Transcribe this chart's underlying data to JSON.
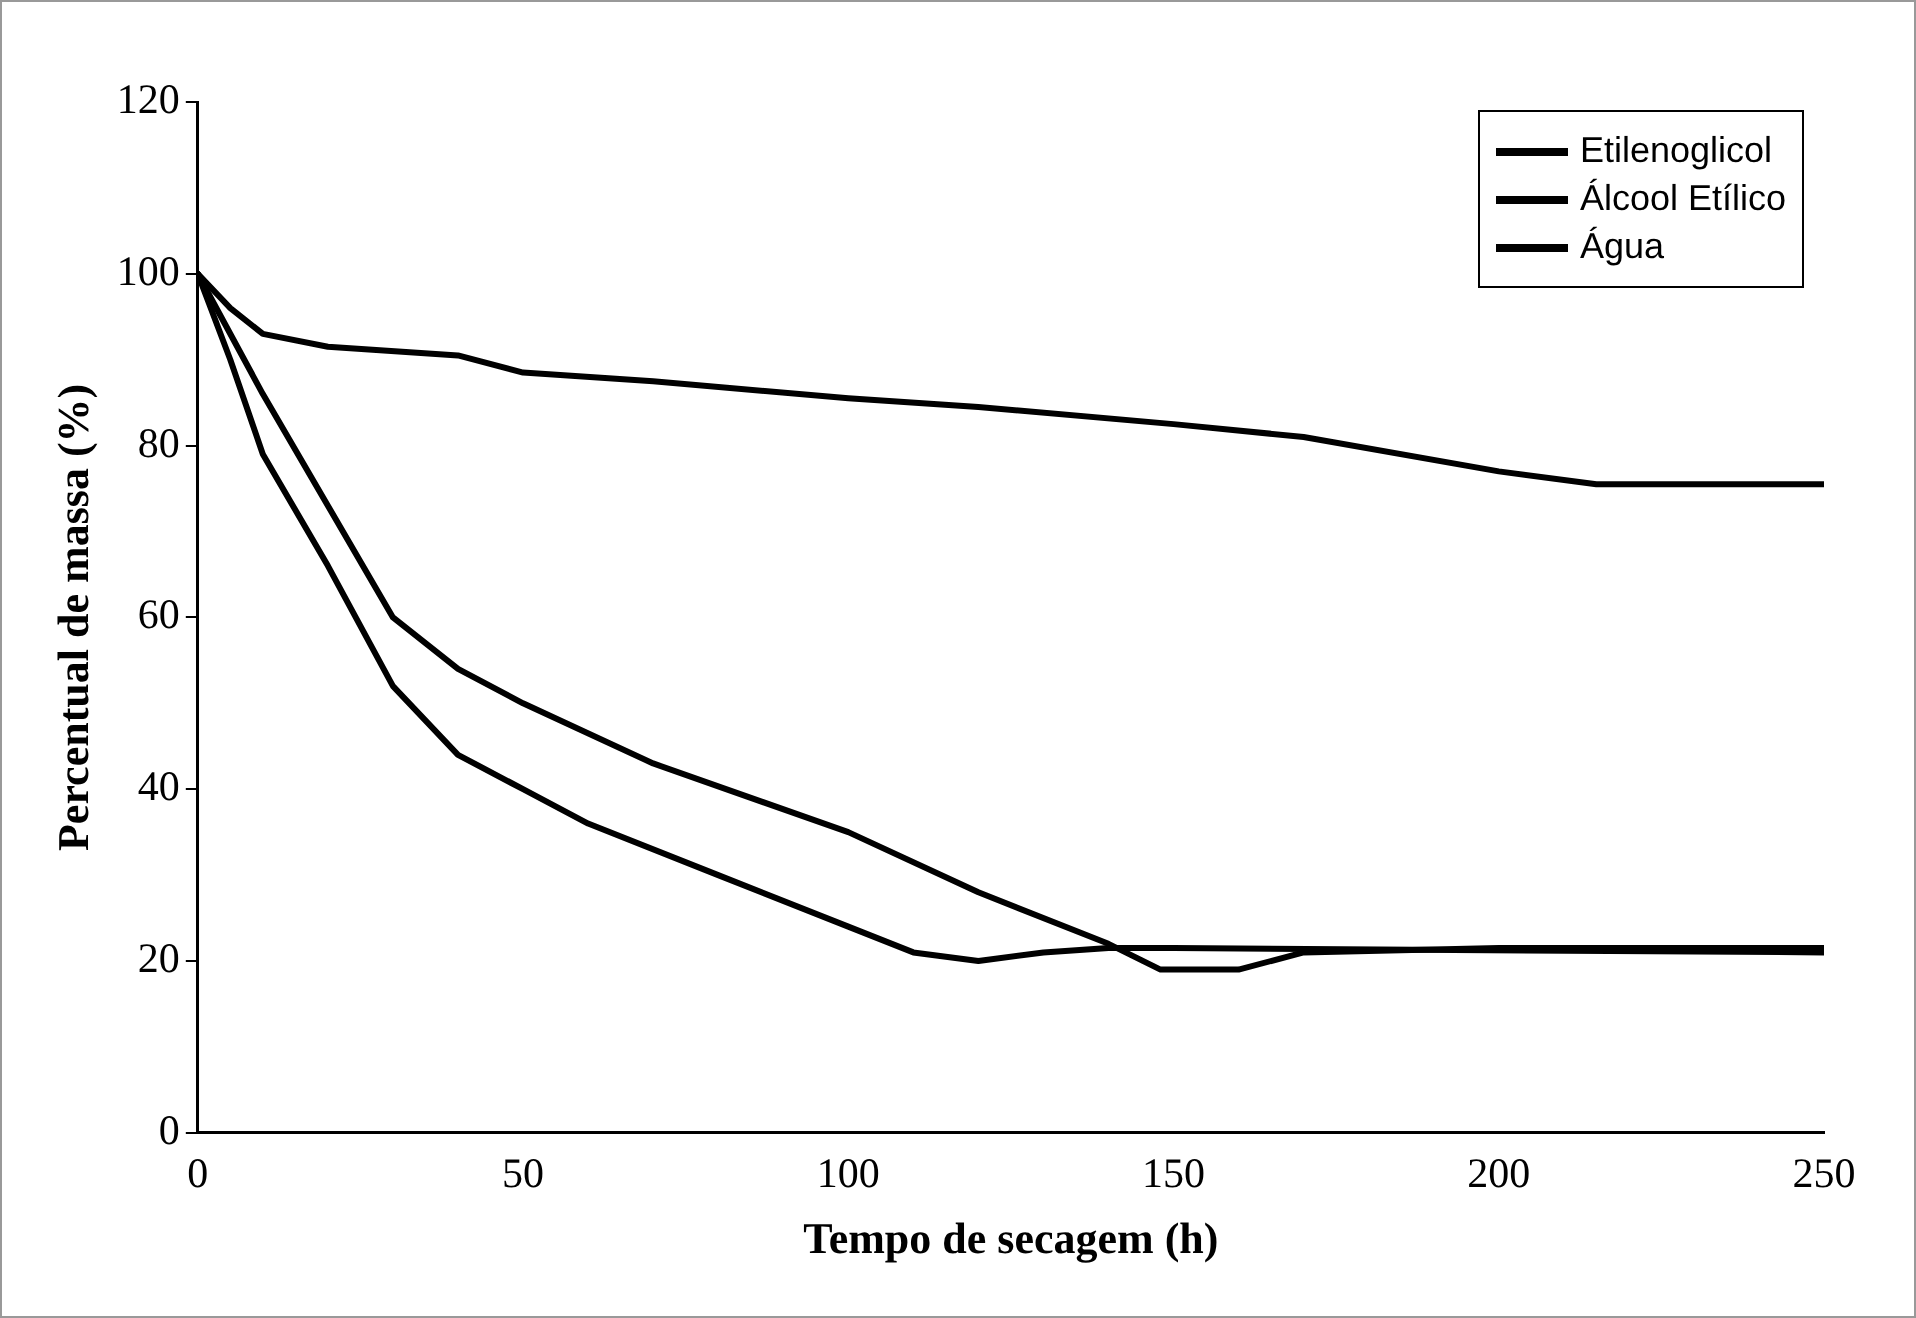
{
  "chart_data": {
    "type": "line",
    "xlabel": "Tempo de secagem (h)",
    "ylabel": "Percentual de massa (%)",
    "xlim": [
      0,
      250
    ],
    "xticks": [
      0,
      50,
      100,
      150,
      200,
      250
    ],
    "ylim": [
      0,
      120
    ],
    "yticks": [
      0,
      20,
      40,
      60,
      80,
      100,
      120
    ],
    "grid": false,
    "legend": "top right",
    "marker": "none",
    "line_style": "solid",
    "series": [
      {
        "name": "Etilenoglicol",
        "color": "#000000",
        "x": [
          0,
          5,
          10,
          20,
          40,
          50,
          70,
          100,
          120,
          150,
          170,
          200,
          215,
          250
        ],
        "values": [
          100,
          96,
          93,
          91.5,
          90.5,
          88.5,
          87.5,
          85.5,
          84.5,
          82.5,
          81,
          77,
          75.5,
          75.5
        ]
      },
      {
        "name": "Álcool Etílico",
        "color": "#000000",
        "x": [
          0,
          5,
          10,
          20,
          30,
          40,
          50,
          60,
          80,
          100,
          110,
          120,
          130,
          140,
          150,
          250
        ],
        "values": [
          100,
          90,
          79,
          66,
          52,
          44,
          40,
          36,
          30,
          24,
          21,
          20,
          21,
          21.5,
          21.5,
          21
        ]
      },
      {
        "name": "Água",
        "color": "#000000",
        "x": [
          0,
          10,
          20,
          30,
          40,
          50,
          70,
          100,
          120,
          140,
          148,
          160,
          170,
          200,
          250
        ],
        "values": [
          100,
          86,
          73,
          60,
          54,
          50,
          43,
          35,
          28,
          22,
          19,
          19,
          21,
          21.5,
          21.5
        ]
      }
    ]
  }
}
